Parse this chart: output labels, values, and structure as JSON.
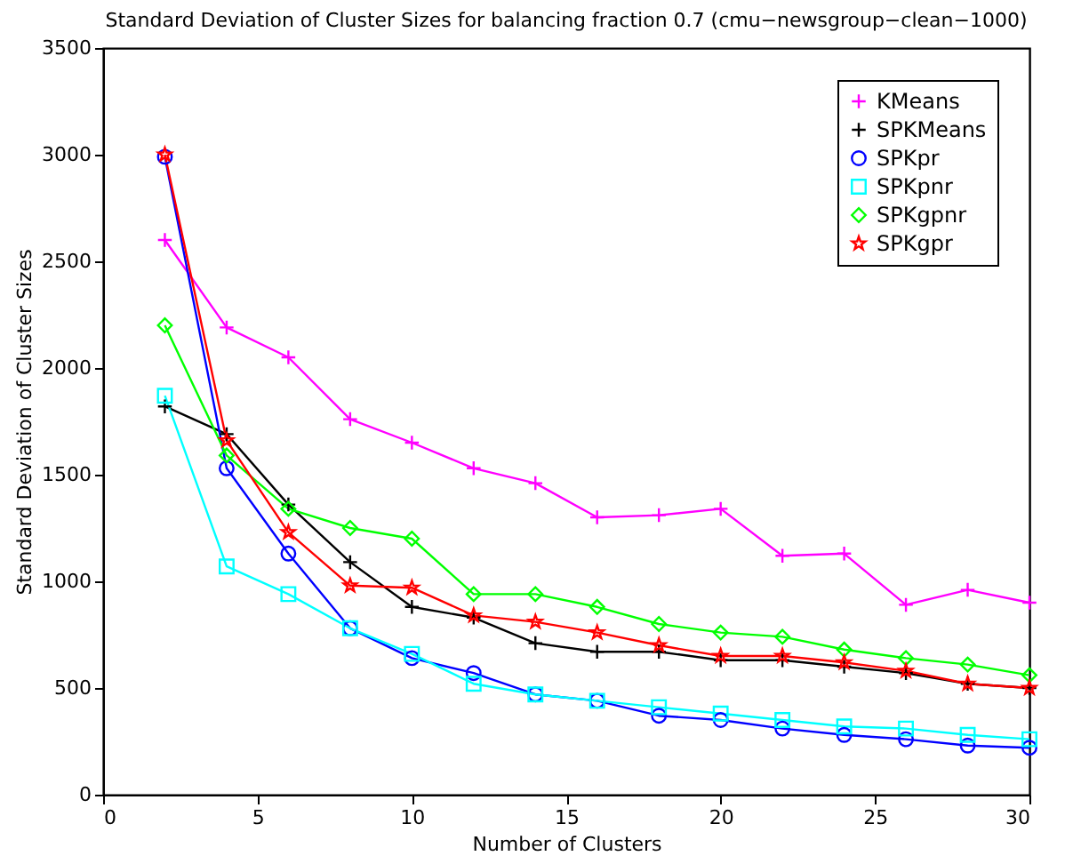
{
  "chart_data": {
    "type": "line",
    "title": "Standard Deviation of Cluster Sizes for balancing fraction 0.7 (cmu−newsgroup−clean−1000)",
    "xlabel": "Number of Clusters",
    "ylabel": "Standard Deviation of Cluster Sizes",
    "x": [
      2,
      4,
      6,
      8,
      10,
      12,
      14,
      16,
      18,
      20,
      22,
      24,
      26,
      28,
      30
    ],
    "series": [
      {
        "name": "KMeans",
        "color": "#ff00ff",
        "marker": "cross",
        "values": [
          2600,
          2190,
          2050,
          1760,
          1650,
          1530,
          1460,
          1300,
          1310,
          1340,
          1120,
          1130,
          890,
          960,
          900
        ]
      },
      {
        "name": "SPKMeans",
        "color": "#000000",
        "marker": "cross",
        "values": [
          1820,
          1690,
          1360,
          1090,
          880,
          830,
          710,
          670,
          670,
          630,
          630,
          600,
          570,
          520,
          500
        ]
      },
      {
        "name": "SPKpr",
        "color": "#0000ff",
        "marker": "circle",
        "values": [
          2990,
          1530,
          1130,
          780,
          640,
          570,
          470,
          440,
          370,
          350,
          310,
          280,
          260,
          230,
          220
        ]
      },
      {
        "name": "SPKpnr",
        "color": "#00ffff",
        "marker": "square",
        "values": [
          1870,
          1070,
          940,
          780,
          660,
          520,
          470,
          440,
          410,
          380,
          350,
          320,
          310,
          280,
          260
        ]
      },
      {
        "name": "SPKgpnr",
        "color": "#00ff00",
        "marker": "diamond",
        "values": [
          2200,
          1590,
          1340,
          1250,
          1200,
          940,
          940,
          880,
          800,
          760,
          740,
          680,
          640,
          610,
          560
        ]
      },
      {
        "name": "SPKgpr",
        "color": "#ff0000",
        "marker": "star",
        "values": [
          3000,
          1660,
          1230,
          980,
          970,
          840,
          810,
          760,
          700,
          650,
          650,
          620,
          580,
          520,
          500
        ]
      }
    ],
    "xlim": [
      0,
      30
    ],
    "xticks": [
      0,
      5,
      10,
      15,
      20,
      25,
      30
    ],
    "ylim": [
      0,
      3500
    ],
    "yticks": [
      0,
      500,
      1000,
      1500,
      2000,
      2500,
      3000,
      3500
    ],
    "grid": false,
    "legend": "top right",
    "line_style": "solid"
  }
}
